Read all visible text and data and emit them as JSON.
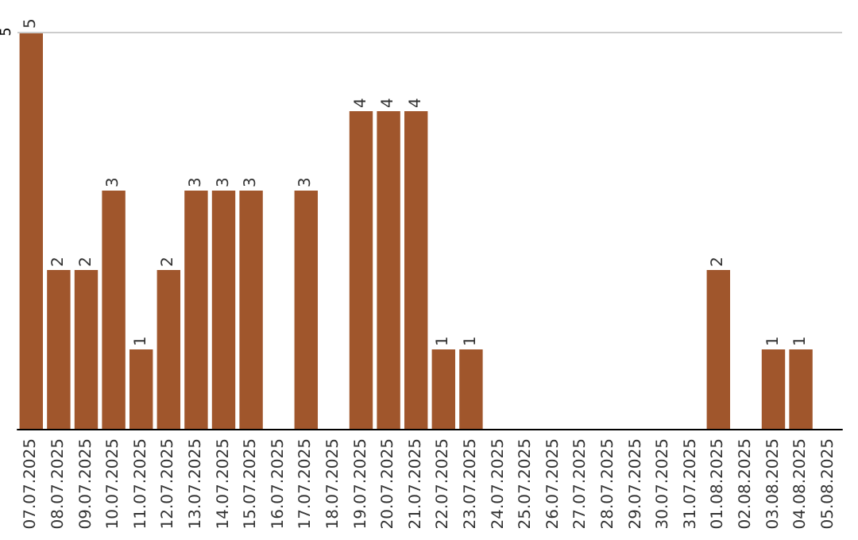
{
  "chart_data": {
    "type": "bar",
    "categories": [
      "07.07.2025",
      "08.07.2025",
      "09.07.2025",
      "10.07.2025",
      "11.07.2025",
      "12.07.2025",
      "13.07.2025",
      "14.07.2025",
      "15.07.2025",
      "16.07.2025",
      "17.07.2025",
      "18.07.2025",
      "19.07.2025",
      "20.07.2025",
      "21.07.2025",
      "22.07.2025",
      "23.07.2025",
      "24.07.2025",
      "25.07.2025",
      "26.07.2025",
      "27.07.2025",
      "28.07.2025",
      "29.07.2025",
      "30.07.2025",
      "31.07.2025",
      "01.08.2025",
      "02.08.2025",
      "03.08.2025",
      "04.08.2025",
      "05.08.2025"
    ],
    "values": [
      5,
      2,
      2,
      3,
      1,
      2,
      3,
      3,
      3,
      0,
      3,
      0,
      4,
      4,
      4,
      1,
      1,
      0,
      0,
      0,
      0,
      0,
      0,
      0,
      0,
      2,
      0,
      1,
      1,
      0
    ],
    "value_labels": [
      "5",
      "2",
      "2",
      "3",
      "1",
      "2",
      "3",
      "3",
      "3",
      null,
      "3",
      null,
      "4",
      "4",
      "4",
      "1",
      "1",
      null,
      null,
      null,
      null,
      null,
      null,
      null,
      null,
      "2",
      null,
      "1",
      "1",
      null
    ],
    "color": "#a0562c",
    "ylim": [
      0,
      5
    ],
    "yticks": [
      5
    ],
    "ref_lines": [
      {
        "axis": "y",
        "value": 5,
        "color": "#cccccc"
      }
    ]
  }
}
